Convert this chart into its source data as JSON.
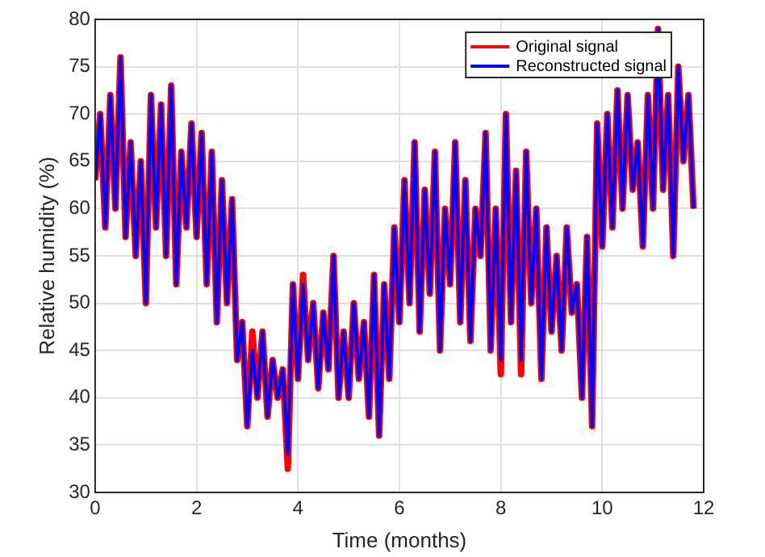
{
  "chart_data": {
    "type": "line",
    "xlabel": "Time (months)",
    "ylabel": "Relative humidity (%)",
    "x": [
      0,
      0.1,
      0.2,
      0.3,
      0.4,
      0.5,
      0.6,
      0.7,
      0.8,
      0.9,
      1,
      1.1,
      1.2,
      1.3,
      1.4,
      1.5,
      1.6,
      1.7,
      1.8,
      1.9,
      2,
      2.1,
      2.2,
      2.3,
      2.4,
      2.5,
      2.6,
      2.7,
      2.8,
      2.9,
      3,
      3.1,
      3.2,
      3.3,
      3.4,
      3.5,
      3.6,
      3.7,
      3.8,
      3.9,
      4,
      4.1,
      4.2,
      4.3,
      4.4,
      4.5,
      4.6,
      4.7,
      4.8,
      4.9,
      5,
      5.1,
      5.2,
      5.3,
      5.4,
      5.5,
      5.6,
      5.7,
      5.8,
      5.9,
      6,
      6.1,
      6.2,
      6.3,
      6.4,
      6.5,
      6.6,
      6.7,
      6.8,
      6.9,
      7,
      7.1,
      7.2,
      7.3,
      7.4,
      7.5,
      7.6,
      7.7,
      7.8,
      7.9,
      8,
      8.1,
      8.2,
      8.3,
      8.4,
      8.5,
      8.6,
      8.7,
      8.8,
      8.9,
      9,
      9.1,
      9.2,
      9.3,
      9.4,
      9.5,
      9.6,
      9.7,
      9.8,
      9.9,
      10,
      10.1,
      10.2,
      10.3,
      10.4,
      10.5,
      10.6,
      10.7,
      10.8,
      10.9,
      11,
      11.1,
      11.2,
      11.3,
      11.4,
      11.5,
      11.6,
      11.7,
      11.8
    ],
    "series": [
      {
        "name": "Original signal",
        "color": "#ff0000",
        "values": [
          63,
          70,
          58,
          72,
          60,
          76,
          57,
          67,
          55,
          65,
          50,
          72,
          58,
          71,
          55,
          73,
          52,
          66,
          58,
          69,
          57,
          68,
          52,
          66,
          48,
          63,
          50,
          61,
          44,
          48,
          37,
          47,
          40,
          47,
          38,
          44,
          40,
          43,
          32.5,
          52,
          42,
          53,
          44,
          50,
          41,
          49,
          43,
          55,
          40,
          47,
          40,
          50,
          42,
          48,
          38,
          53,
          36,
          52,
          42,
          58,
          48,
          63,
          50,
          67,
          47,
          62,
          51,
          66,
          45,
          60,
          52,
          67,
          48,
          63,
          46,
          60,
          55,
          68,
          45,
          60,
          42.5,
          70,
          48,
          64,
          42.5,
          66,
          50,
          60,
          42,
          58,
          47,
          55,
          45,
          58,
          49,
          52,
          40,
          57,
          37,
          69,
          56,
          70,
          58,
          72.5,
          60,
          72,
          62,
          67,
          56,
          72,
          60,
          79,
          62,
          72,
          55,
          75,
          65,
          72,
          60
        ]
      },
      {
        "name": "Reconstructed signal",
        "color": "#0000ff",
        "values": [
          63,
          70,
          58,
          72,
          60,
          76,
          57,
          67,
          55,
          65,
          50,
          72,
          58,
          71,
          55,
          73,
          52,
          66,
          58,
          69,
          57,
          68,
          52,
          66,
          48,
          63,
          50,
          61,
          44,
          48,
          37,
          45,
          40,
          47,
          38,
          44,
          40,
          43,
          34,
          52,
          42,
          52,
          44,
          50,
          41,
          49,
          43,
          55,
          40,
          47,
          40,
          50,
          42,
          48,
          38,
          53,
          36,
          52,
          42,
          58,
          48,
          63,
          50,
          67,
          47,
          62,
          51,
          66,
          45,
          60,
          52,
          67,
          48,
          63,
          46,
          60,
          55,
          68,
          45,
          60,
          44,
          70,
          48,
          64,
          44,
          66,
          50,
          60,
          42,
          58,
          47,
          55,
          45,
          58,
          49,
          52,
          40,
          57,
          37,
          69,
          56,
          70,
          58,
          72.5,
          60,
          72,
          62,
          67,
          56,
          72,
          60,
          79,
          62,
          72,
          55,
          75,
          65,
          72,
          60
        ]
      }
    ],
    "xlim": [
      0,
      12
    ],
    "xticks": [
      0,
      2,
      4,
      6,
      8,
      10,
      12
    ],
    "ylim": [
      30,
      80
    ],
    "yticks": [
      30,
      35,
      40,
      45,
      50,
      55,
      60,
      65,
      70,
      75,
      80
    ],
    "grid": true,
    "legend": "top right",
    "marker": "none",
    "line_style": "solid"
  }
}
